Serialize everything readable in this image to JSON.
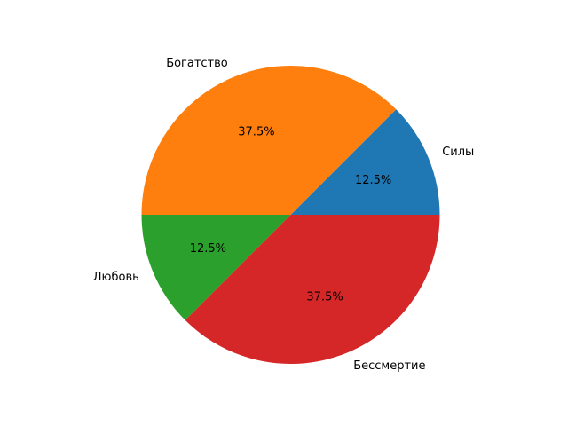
{
  "chart_data": {
    "type": "pie",
    "categories": [
      "Силы",
      "Богатство",
      "Любовь",
      "Бессмертие"
    ],
    "values": [
      12.5,
      37.5,
      12.5,
      37.5
    ],
    "percent_labels": [
      "12.5%",
      "37.5%",
      "12.5%",
      "37.5%"
    ],
    "colors": [
      "#1f77b4",
      "#ff7f0e",
      "#2ca02c",
      "#d62728"
    ],
    "start_angle_deg": 0,
    "direction": "counterclockwise",
    "title": "",
    "legend": "none"
  }
}
